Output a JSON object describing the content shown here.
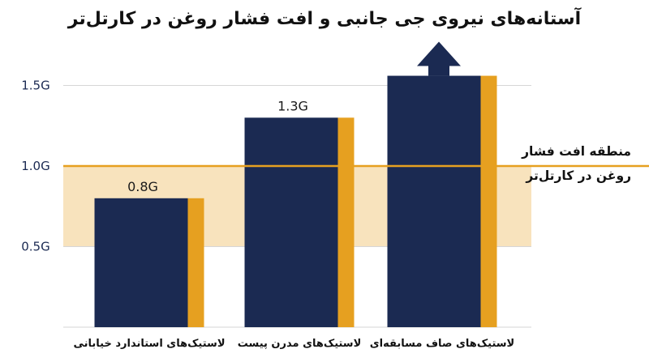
{
  "chart_data": {
    "type": "bar",
    "title": "آستانه‌های نیروی جی جانبی و افت فشار روغن در کارتل‌تر",
    "categories": [
      "لاستیک‌های استاندارد خیابانی",
      "لاستیک‌های مدرن پیست",
      "لاستیک‌های صاف مسابقه‌ای"
    ],
    "values": [
      0.8,
      1.3,
      1.56
    ],
    "value_labels": [
      "0.8G",
      "1.3G",
      ""
    ],
    "y_ticks": [
      {
        "value": 0.5,
        "label": "0.5G"
      },
      {
        "value": 1.0,
        "label": "1.0G"
      },
      {
        "value": 1.5,
        "label": "1.5G"
      }
    ],
    "ylim": [
      0,
      1.75
    ],
    "threshold": {
      "value": 1.0
    },
    "zone": {
      "from": 0.5,
      "to": 1.0
    },
    "zone_label_lines": [
      "منطقه افت فشار",
      "روغن در کارتل‌تر"
    ],
    "grid": true,
    "up_arrow_on_last_bar": true,
    "colors": {
      "bar": "#1b2a52",
      "bar_edge": "#e6a020",
      "threshold": "#e6a020",
      "zone": "#f8e3bd",
      "grid": "#d6d6d6",
      "tick_text": "#1b2a52"
    }
  }
}
